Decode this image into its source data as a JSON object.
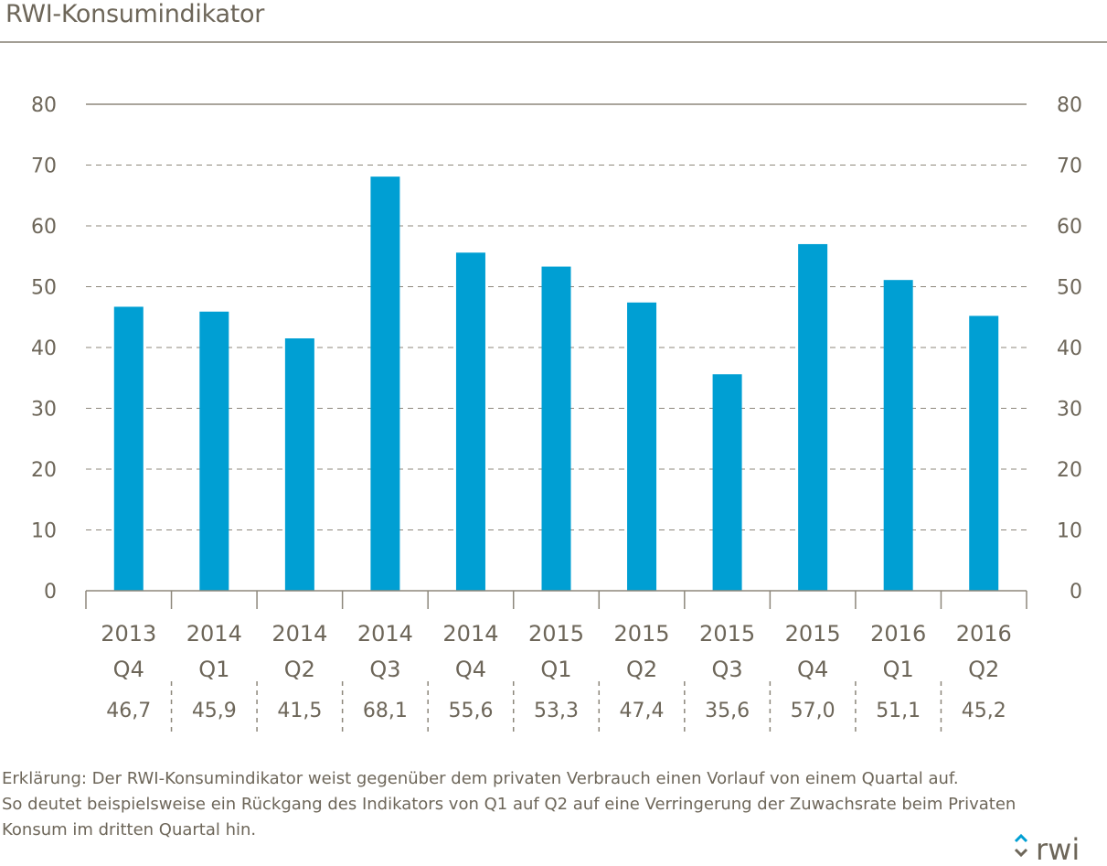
{
  "title": "RWI-Konsumindikator",
  "chart_data": {
    "type": "bar",
    "categories": [
      {
        "year": "2013",
        "quarter": "Q4"
      },
      {
        "year": "2014",
        "quarter": "Q1"
      },
      {
        "year": "2014",
        "quarter": "Q2"
      },
      {
        "year": "2014",
        "quarter": "Q3"
      },
      {
        "year": "2014",
        "quarter": "Q4"
      },
      {
        "year": "2015",
        "quarter": "Q1"
      },
      {
        "year": "2015",
        "quarter": "Q2"
      },
      {
        "year": "2015",
        "quarter": "Q3"
      },
      {
        "year": "2015",
        "quarter": "Q4"
      },
      {
        "year": "2016",
        "quarter": "Q1"
      },
      {
        "year": "2016",
        "quarter": "Q2"
      }
    ],
    "values": [
      46.7,
      45.9,
      41.5,
      68.1,
      55.6,
      53.3,
      47.4,
      35.6,
      57.0,
      51.1,
      45.2
    ],
    "value_labels": [
      "46,7",
      "45,9",
      "41,5",
      "68,1",
      "55,6",
      "53,3",
      "47,4",
      "35,6",
      "57,0",
      "51,1",
      "45,2"
    ],
    "ylim": [
      0,
      80
    ],
    "yticks": [
      "0",
      "10",
      "20",
      "30",
      "40",
      "50",
      "60",
      "70",
      "80"
    ],
    "grid": true,
    "bar_color": "#009fd3",
    "grid_color": "#8d877b",
    "text_color": "#6d6659"
  },
  "explanation": [
    "Erklärung: Der RWI-Konsumindikator weist gegenüber dem privaten Verbrauch einen Vorlauf von einem Quartal auf.",
    "So deutet beispielsweise ein Rückgang des Indikators von Q1 auf Q2 auf eine Verringerung der Zuwachsrate beim Privaten",
    "Konsum im dritten Quartal hin."
  ],
  "logo": {
    "text": "rwi",
    "icon": "rwi-logo-icon"
  }
}
